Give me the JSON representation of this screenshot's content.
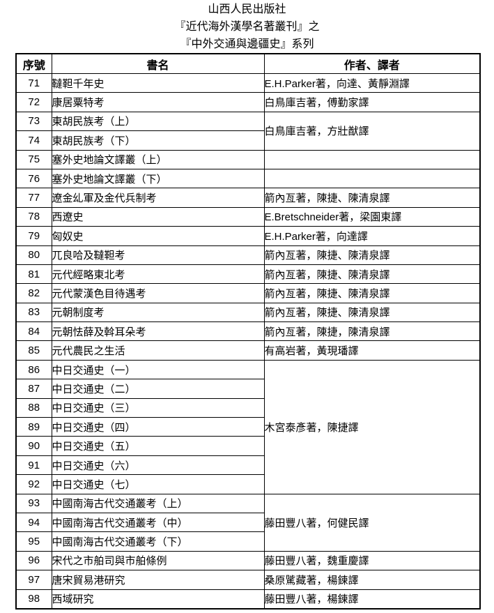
{
  "page": {
    "titles": [
      "山西人民出版社",
      "『近代海外漢學名著叢刊』之",
      "『中外交通與邊疆史』系列"
    ]
  },
  "table": {
    "headers": {
      "num": "序號",
      "title": "書名",
      "author": "作者、譯者"
    },
    "rows": [
      {
        "num": "71",
        "title": "韃靼千年史",
        "author": {
          "text": "E.H.Parker著，向達、黃靜淵譯",
          "span": 1
        }
      },
      {
        "num": "72",
        "title": "康居粟特考",
        "author": {
          "text": "白鳥庫吉著，傅勤家譯",
          "span": 1
        }
      },
      {
        "num": "73",
        "title": "東胡民族考（上）",
        "author": {
          "text": "白鳥庫吉著，方壯猷譯",
          "span": 2
        }
      },
      {
        "num": "74",
        "title": "東胡民族考（下）"
      },
      {
        "num": "75",
        "title": "塞外史地論文譯叢（上）",
        "author": {
          "text": "",
          "span": 1
        }
      },
      {
        "num": "76",
        "title": "塞外史地論文譯叢（下）",
        "author": {
          "text": "",
          "span": 1
        }
      },
      {
        "num": "77",
        "title": "遼金乣軍及金代兵制考",
        "author": {
          "text": "箭內亙著，陳捷、陳清泉譯",
          "span": 1
        }
      },
      {
        "num": "78",
        "title": "西遼史",
        "author": {
          "text": "E.Bretschneider著，梁園東譯",
          "span": 1
        }
      },
      {
        "num": "79",
        "title": "匈奴史",
        "author": {
          "text": "E.H.Parker著，向達譯",
          "span": 1
        }
      },
      {
        "num": "80",
        "title": "兀良哈及韃靼考",
        "author": {
          "text": "箭內亙著，陳捷、陳清泉譯",
          "span": 1
        }
      },
      {
        "num": "81",
        "title": "元代經略東北考",
        "author": {
          "text": "箭內亙著，陳捷、陳清泉譯",
          "span": 1
        }
      },
      {
        "num": "82",
        "title": "元代蒙漢色目待遇考",
        "author": {
          "text": "箭內亙著，陳捷、陳清泉譯",
          "span": 1
        }
      },
      {
        "num": "83",
        "title": "元朝制度考",
        "author": {
          "text": "箭內亙著，陳捷、陳清泉譯",
          "span": 1
        }
      },
      {
        "num": "84",
        "title": "元朝怯薛及斡耳朵考",
        "author": {
          "text": "箭內亙著，陳捷，陳清泉譯",
          "span": 1
        }
      },
      {
        "num": "85",
        "title": "元代農民之生活",
        "author": {
          "text": "有高岩著，黃現璠譯",
          "span": 1
        }
      },
      {
        "num": "86",
        "title": "中日交通史（一）",
        "author": {
          "text": "木宮泰彥著，陳捷譯",
          "span": 7
        }
      },
      {
        "num": "87",
        "title": "中日交通史（二）"
      },
      {
        "num": "88",
        "title": "中日交通史（三）"
      },
      {
        "num": "89",
        "title": "中日交通史（四）"
      },
      {
        "num": "90",
        "title": "中日交通史（五）"
      },
      {
        "num": "91",
        "title": "中日交通史（六）"
      },
      {
        "num": "92",
        "title": "中日交通史（七）"
      },
      {
        "num": "93",
        "title": "中國南海古代交通叢考（上）",
        "author": {
          "text": "藤田豐八著，何健民譯",
          "span": 3
        }
      },
      {
        "num": "94",
        "title": "中國南海古代交通叢考（中）"
      },
      {
        "num": "95",
        "title": "中國南海古代交通叢考（下）"
      },
      {
        "num": "96",
        "title": "宋代之市舶司與市舶條例",
        "author": {
          "text": "藤田豐八著，魏重慶譯",
          "span": 1
        }
      },
      {
        "num": "97",
        "title": "唐宋貿易港研究",
        "author": {
          "text": "桑原騭藏著，楊鍊譯",
          "span": 1
        }
      },
      {
        "num": "98",
        "title": "西域研究",
        "author": {
          "text": "藤田豐八著，楊鍊譯",
          "span": 1
        }
      }
    ]
  },
  "colors": {
    "text": "#000000",
    "border": "#000000",
    "background": "#ffffff"
  }
}
